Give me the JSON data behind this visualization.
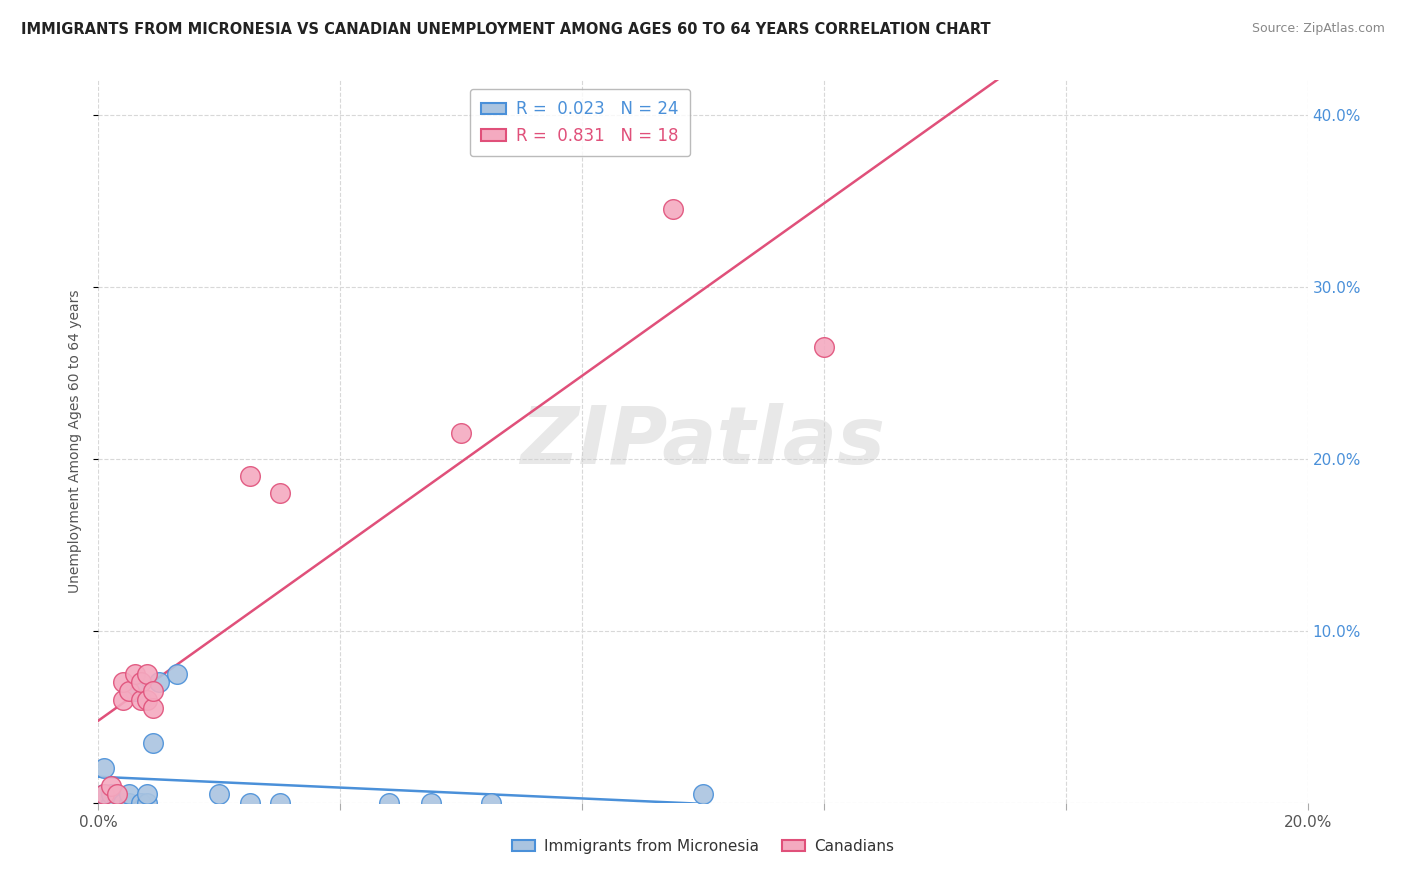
{
  "title": "IMMIGRANTS FROM MICRONESIA VS CANADIAN UNEMPLOYMENT AMONG AGES 60 TO 64 YEARS CORRELATION CHART",
  "source": "Source: ZipAtlas.com",
  "ylabel": "Unemployment Among Ages 60 to 64 years",
  "watermark": "ZIPatlas",
  "xlim": [
    0.0,
    0.2
  ],
  "ylim": [
    0.0,
    0.42
  ],
  "xtick_positions": [
    0.0,
    0.04,
    0.08,
    0.12,
    0.16,
    0.2
  ],
  "xtick_labels": [
    "0.0%",
    "",
    "",
    "",
    "",
    "20.0%"
  ],
  "ytick_positions": [
    0.0,
    0.1,
    0.2,
    0.3,
    0.4
  ],
  "ytick_labels": [
    "",
    "10.0%",
    "20.0%",
    "30.0%",
    "40.0%"
  ],
  "blue_R": 0.023,
  "blue_N": 24,
  "pink_R": 0.831,
  "pink_N": 18,
  "blue_color": "#aac4e0",
  "pink_color": "#f4aac0",
  "blue_line_color": "#4a90d9",
  "pink_line_color": "#e0507a",
  "legend_blue_label": "Immigrants from Micronesia",
  "legend_pink_label": "Canadians",
  "blue_x": [
    0.001,
    0.001,
    0.002,
    0.002,
    0.003,
    0.003,
    0.004,
    0.004,
    0.005,
    0.005,
    0.006,
    0.007,
    0.008,
    0.008,
    0.009,
    0.01,
    0.013,
    0.02,
    0.025,
    0.03,
    0.048,
    0.055,
    0.065,
    0.1
  ],
  "blue_y": [
    0.005,
    0.02,
    0.0,
    0.005,
    0.0,
    0.0,
    0.0,
    0.0,
    0.0,
    0.005,
    0.065,
    0.0,
    0.0,
    0.005,
    0.035,
    0.07,
    0.075,
    0.005,
    0.0,
    0.0,
    0.0,
    0.0,
    0.0,
    0.005
  ],
  "pink_x": [
    0.001,
    0.002,
    0.003,
    0.004,
    0.004,
    0.005,
    0.006,
    0.007,
    0.007,
    0.008,
    0.008,
    0.009,
    0.009,
    0.025,
    0.03,
    0.06,
    0.095,
    0.12
  ],
  "pink_y": [
    0.005,
    0.01,
    0.005,
    0.06,
    0.07,
    0.065,
    0.075,
    0.06,
    0.07,
    0.06,
    0.075,
    0.055,
    0.065,
    0.19,
    0.18,
    0.215,
    0.345,
    0.265
  ],
  "background_color": "#ffffff",
  "grid_color": "#d8d8d8"
}
